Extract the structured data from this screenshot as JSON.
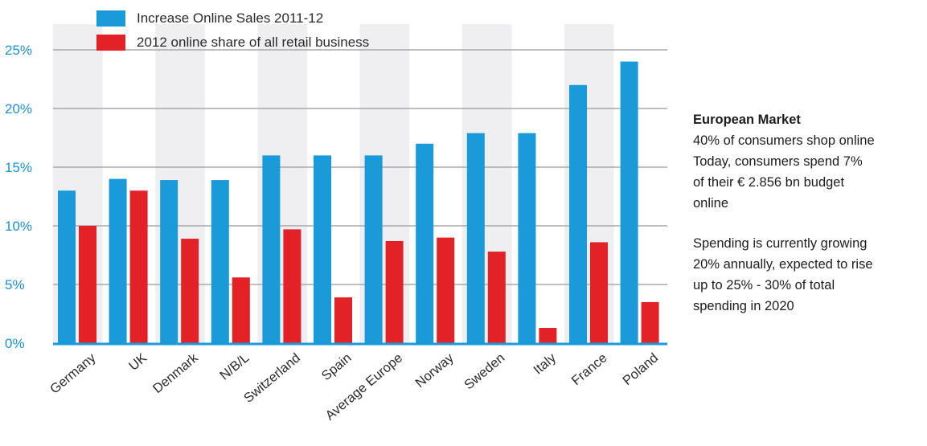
{
  "colors": {
    "increase": "#1a9ad9",
    "share": "#e32227",
    "axis": "#1a9ad9",
    "grid": "#a8a8a8",
    "band": "#efeff1"
  },
  "legend": [
    {
      "label": "Increase Online Sales 2011-12",
      "color": "#1a9ad9"
    },
    {
      "label": "2012 online share of all retail business",
      "color": "#e32227"
    }
  ],
  "side_panel": {
    "title": "European Market",
    "lines_1": [
      "40% of consumers shop online",
      "Today, consumers spend 7%",
      "of their € 2.856 bn budget",
      "online"
    ],
    "lines_2": [
      "Spending is currently growing",
      "20% annually, expected to rise",
      "up to 25% - 30% of total",
      "spending in 2020"
    ]
  },
  "chart_data": {
    "type": "bar",
    "categories": [
      "Germany",
      "UK",
      "Denmark",
      "N/B/L",
      "Switzerland",
      "Spain",
      "Average Europe",
      "Norway",
      "Sweden",
      "Italy",
      "France",
      "Poland"
    ],
    "series": [
      {
        "name": "Increase Online Sales 2011-12",
        "values": [
          13,
          14,
          13.9,
          13.9,
          16,
          16,
          16,
          17,
          17.9,
          17.9,
          22,
          24
        ]
      },
      {
        "name": "2012 online share of all retail business",
        "values": [
          10,
          13,
          8.9,
          5.6,
          9.7,
          3.9,
          8.7,
          9,
          7.8,
          1.3,
          8.6,
          3.5
        ]
      }
    ],
    "yticks": [
      "0%",
      "5%",
      "10%",
      "15%",
      "20%",
      "25%"
    ],
    "ylim": [
      0,
      25
    ],
    "grid": true,
    "legend_position": "top-left"
  }
}
